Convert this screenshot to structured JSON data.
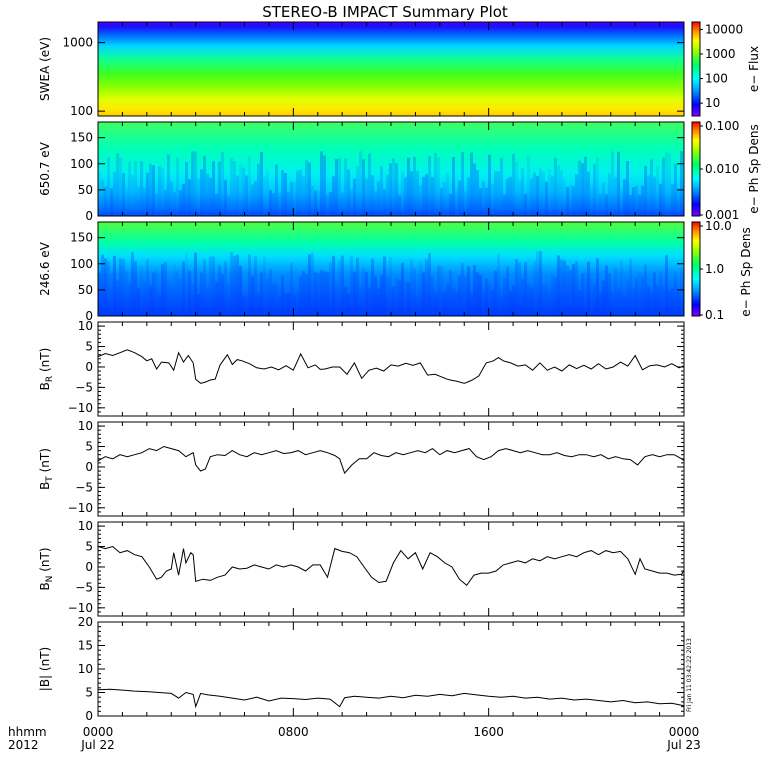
{
  "title": "STEREO-B IMPACT Summary Plot",
  "stamp": "Fri Jan 11 03:42:22 2013",
  "x_axis": {
    "row1_label": "hhmm",
    "row2_label": "2012",
    "ticks": [
      {
        "hours": 0,
        "time": "0000",
        "date": "Jul 22"
      },
      {
        "hours": 8,
        "time": "0800",
        "date": ""
      },
      {
        "hours": 16,
        "time": "1600",
        "date": ""
      },
      {
        "hours": 24,
        "time": "0000",
        "date": "Jul 23"
      }
    ],
    "range_hours": [
      0,
      24
    ]
  },
  "chart_data": [
    {
      "type": "heatmap",
      "panel": "swea",
      "ylabel": "SWEA (eV)",
      "y_scale": "log",
      "ylim": [
        85,
        2000
      ],
      "yticks": [
        {
          "value": 100,
          "label": "100"
        },
        {
          "value": 1000,
          "label": "1000"
        }
      ],
      "colorbar": {
        "label": "e− Flux",
        "scale": "log",
        "range": [
          3,
          20000
        ],
        "ticks": [
          {
            "value": 10,
            "label": "10"
          },
          {
            "value": 100,
            "label": "100"
          },
          {
            "value": 1000,
            "label": "1000"
          },
          {
            "value": 10000,
            "label": "10000"
          }
        ]
      },
      "description_gradient": [
        {
          "energy": 2000,
          "flux": 4
        },
        {
          "energy": 1400,
          "flux": 10
        },
        {
          "energy": 1000,
          "flux": 40
        },
        {
          "energy": 700,
          "flux": 300
        },
        {
          "energy": 450,
          "flux": 800
        },
        {
          "energy": 250,
          "flux": 1000
        },
        {
          "energy": 150,
          "flux": 3000
        },
        {
          "energy": 100,
          "flux": 8000
        },
        {
          "energy": 85,
          "flux": 12000
        }
      ]
    },
    {
      "type": "heatmap",
      "panel": "pad650",
      "ylabel": "650.7  eV",
      "ylim": [
        0,
        180
      ],
      "yticks": [
        {
          "value": 0,
          "label": "0"
        },
        {
          "value": 50,
          "label": "50"
        },
        {
          "value": 100,
          "label": "100"
        },
        {
          "value": 150,
          "label": "150"
        }
      ],
      "colorbar": {
        "label": "e− Ph Sp Dens",
        "scale": "log",
        "range": [
          0.001,
          0.1
        ],
        "ticks": [
          {
            "value": 0.001,
            "label": "0.001"
          },
          {
            "value": 0.01,
            "label": "0.010"
          },
          {
            "value": 0.1,
            "label": "0.100"
          }
        ]
      }
    },
    {
      "type": "heatmap",
      "panel": "pad246",
      "ylabel": "246.6  eV",
      "ylim": [
        0,
        180
      ],
      "yticks": [
        {
          "value": 0,
          "label": "0"
        },
        {
          "value": 50,
          "label": "50"
        },
        {
          "value": 100,
          "label": "100"
        },
        {
          "value": 150,
          "label": "150"
        }
      ],
      "colorbar": {
        "label": "e− Ph Sp Dens",
        "scale": "log",
        "range": [
          0.1,
          10
        ],
        "ticks": [
          {
            "value": 0.1,
            "label": "0.1"
          },
          {
            "value": 1,
            "label": "1.0"
          },
          {
            "value": 10,
            "label": "10.0"
          }
        ]
      }
    },
    {
      "type": "line",
      "panel": "br",
      "ylabel": "B",
      "ylabel_sub": "R",
      "ylabel_unit": " (nT)",
      "ylim": [
        -12,
        11
      ],
      "yticks": [
        {
          "value": -10,
          "label": "−10"
        },
        {
          "value": -5,
          "label": "−5"
        },
        {
          "value": 0,
          "label": "0"
        },
        {
          "value": 5,
          "label": "5"
        },
        {
          "value": 10,
          "label": "10"
        }
      ],
      "x": [
        0,
        0.3,
        0.6,
        0.9,
        1.2,
        1.5,
        1.8,
        2.0,
        2.2,
        2.4,
        2.6,
        2.9,
        3.1,
        3.3,
        3.5,
        3.7,
        3.9,
        4.0,
        4.2,
        4.4,
        4.6,
        4.8,
        5.0,
        5.3,
        5.5,
        5.7,
        5.9,
        6.2,
        6.5,
        6.8,
        7.1,
        7.4,
        7.7,
        8.0,
        8.3,
        8.6,
        8.9,
        9.1,
        9.3,
        9.6,
        9.9,
        10.2,
        10.5,
        10.8,
        11.1,
        11.4,
        11.7,
        12.0,
        12.3,
        12.6,
        12.9,
        13.2,
        13.5,
        13.8,
        14.1,
        14.3,
        14.5,
        14.7,
        15.0,
        15.3,
        15.6,
        15.9,
        16.2,
        16.4,
        16.6,
        16.9,
        17.2,
        17.5,
        17.8,
        18.1,
        18.4,
        18.7,
        19.0,
        19.3,
        19.6,
        19.9,
        20.2,
        20.5,
        20.8,
        21.1,
        21.4,
        21.7,
        22.0,
        22.3,
        22.6,
        22.9,
        23.2,
        23.5,
        23.8,
        24.0
      ],
      "y": [
        2.5,
        3.3,
        2.8,
        3.5,
        4.2,
        3.5,
        2.5,
        1.5,
        2.0,
        -0.5,
        1.2,
        1.0,
        -0.8,
        3.5,
        1.2,
        2.8,
        1.0,
        -3.0,
        -4.0,
        -3.7,
        -3.2,
        -3.0,
        0.5,
        3.0,
        0.6,
        1.8,
        1.5,
        0.8,
        -0.2,
        -0.5,
        0.0,
        -0.7,
        0.3,
        -0.8,
        3.2,
        -0.2,
        0.5,
        -0.6,
        -0.5,
        0.0,
        0.0,
        -1.8,
        1.0,
        -2.8,
        -0.8,
        -0.3,
        -1.0,
        0.5,
        0.2,
        0.9,
        0.4,
        1.0,
        -2.0,
        -1.8,
        -2.5,
        -3.0,
        -3.3,
        -3.5,
        -4.0,
        -3.3,
        -2.2,
        1.0,
        1.5,
        2.3,
        1.5,
        1.0,
        0.2,
        0.5,
        -0.8,
        1.0,
        -0.8,
        0.0,
        -1.0,
        0.5,
        -0.4,
        0.4,
        -0.5,
        0.8,
        -0.5,
        0.0,
        1.2,
        0.2,
        2.8,
        -0.7,
        0.3,
        0.5,
        0.0,
        0.8,
        -0.2,
        0.3
      ]
    },
    {
      "type": "line",
      "panel": "bt",
      "ylabel": "B",
      "ylabel_sub": "T",
      "ylabel_unit": " (nT)",
      "ylim": [
        -12,
        11
      ],
      "yticks": [
        {
          "value": -10,
          "label": "−10"
        },
        {
          "value": -5,
          "label": "−5"
        },
        {
          "value": 0,
          "label": "0"
        },
        {
          "value": 5,
          "label": "5"
        },
        {
          "value": 10,
          "label": "10"
        }
      ],
      "x": [
        0,
        0.3,
        0.6,
        0.9,
        1.2,
        1.5,
        1.8,
        2.1,
        2.4,
        2.7,
        3.0,
        3.3,
        3.6,
        3.9,
        4.0,
        4.2,
        4.4,
        4.6,
        4.9,
        5.2,
        5.5,
        5.8,
        6.1,
        6.4,
        6.7,
        7.0,
        7.3,
        7.6,
        7.9,
        8.2,
        8.5,
        8.8,
        9.1,
        9.4,
        9.7,
        9.9,
        10.1,
        10.4,
        10.7,
        11.0,
        11.3,
        11.6,
        11.9,
        12.2,
        12.5,
        12.8,
        13.1,
        13.4,
        13.7,
        14.0,
        14.3,
        14.6,
        14.9,
        15.2,
        15.5,
        15.8,
        16.1,
        16.4,
        16.7,
        17.0,
        17.3,
        17.6,
        17.9,
        18.2,
        18.5,
        18.8,
        19.1,
        19.4,
        19.7,
        20.0,
        20.3,
        20.6,
        20.9,
        21.2,
        21.5,
        21.8,
        22.1,
        22.4,
        22.7,
        23.0,
        23.3,
        23.6,
        23.9,
        24.0
      ],
      "y": [
        1.5,
        2.5,
        2.0,
        3.0,
        2.5,
        3.0,
        3.5,
        4.5,
        4.0,
        5.0,
        4.5,
        4.0,
        2.5,
        3.5,
        0.5,
        -1.0,
        -0.5,
        2.5,
        3.0,
        2.8,
        4.0,
        3.0,
        2.5,
        3.5,
        3.0,
        3.5,
        4.0,
        3.3,
        3.5,
        4.0,
        3.0,
        3.5,
        4.0,
        3.5,
        2.8,
        2.0,
        -1.5,
        0.5,
        2.0,
        2.0,
        3.5,
        2.8,
        2.5,
        3.5,
        3.0,
        3.5,
        4.0,
        3.5,
        4.5,
        3.0,
        4.0,
        3.5,
        4.0,
        4.5,
        2.5,
        1.8,
        2.5,
        4.0,
        4.5,
        4.0,
        3.5,
        4.0,
        3.5,
        3.0,
        3.0,
        3.5,
        2.8,
        2.5,
        3.0,
        3.0,
        2.5,
        3.0,
        2.0,
        2.5,
        2.0,
        1.8,
        0.5,
        2.5,
        3.0,
        2.5,
        3.0,
        3.0,
        2.0,
        1.5
      ]
    },
    {
      "type": "line",
      "panel": "bn",
      "ylabel": "B",
      "ylabel_sub": "N",
      "ylabel_unit": " (nT)",
      "ylim": [
        -12,
        11
      ],
      "yticks": [
        {
          "value": -10,
          "label": "−10"
        },
        {
          "value": -5,
          "label": "−5"
        },
        {
          "value": 0,
          "label": "0"
        },
        {
          "value": 5,
          "label": "5"
        },
        {
          "value": 10,
          "label": "10"
        }
      ],
      "x": [
        0,
        0.3,
        0.6,
        0.9,
        1.2,
        1.5,
        1.8,
        2.1,
        2.4,
        2.6,
        2.8,
        3.0,
        3.1,
        3.3,
        3.5,
        3.6,
        3.8,
        3.9,
        4.0,
        4.3,
        4.6,
        4.9,
        5.2,
        5.5,
        5.8,
        6.1,
        6.4,
        6.7,
        7.0,
        7.3,
        7.6,
        7.9,
        8.2,
        8.5,
        8.8,
        9.1,
        9.4,
        9.7,
        10.0,
        10.3,
        10.6,
        10.9,
        11.2,
        11.5,
        11.8,
        12.1,
        12.4,
        12.7,
        13.0,
        13.3,
        13.6,
        13.9,
        14.2,
        14.5,
        14.8,
        15.1,
        15.4,
        15.7,
        16.0,
        16.3,
        16.6,
        16.9,
        17.2,
        17.5,
        17.8,
        18.1,
        18.4,
        18.7,
        19.0,
        19.3,
        19.6,
        19.9,
        20.2,
        20.5,
        20.8,
        21.1,
        21.4,
        21.7,
        22.0,
        22.2,
        22.4,
        22.7,
        23.0,
        23.3,
        23.6,
        23.9,
        24.0
      ],
      "y": [
        5.0,
        4.5,
        5.0,
        3.5,
        4.0,
        3.0,
        2.5,
        0.0,
        -3.0,
        -2.5,
        -1.0,
        -0.5,
        3.5,
        -2.0,
        4.5,
        1.0,
        3.5,
        3.0,
        -3.5,
        -3.0,
        -3.3,
        -2.5,
        -2.0,
        0.0,
        -0.5,
        -0.3,
        0.5,
        0.0,
        -0.5,
        0.5,
        0.0,
        0.5,
        0.0,
        -1.0,
        0.5,
        0.5,
        -2.5,
        4.5,
        3.8,
        3.5,
        2.5,
        0.0,
        -2.5,
        -3.8,
        -3.5,
        1.0,
        4.0,
        2.0,
        3.5,
        -0.5,
        3.5,
        2.5,
        1.0,
        0.0,
        -3.0,
        -4.5,
        -2.0,
        -1.5,
        -1.5,
        -1.0,
        0.5,
        1.0,
        1.5,
        1.0,
        2.0,
        1.5,
        2.5,
        2.0,
        2.5,
        3.0,
        2.5,
        3.5,
        4.0,
        3.0,
        4.0,
        3.5,
        3.8,
        2.0,
        -1.8,
        2.0,
        -0.5,
        -1.0,
        -1.5,
        -1.5,
        -2.0,
        -1.8,
        -0.8
      ]
    },
    {
      "type": "line",
      "panel": "bmag",
      "ylabel": "|B| (nT)",
      "ylim": [
        0,
        20
      ],
      "yticks": [
        {
          "value": 0,
          "label": "0"
        },
        {
          "value": 5,
          "label": "5"
        },
        {
          "value": 10,
          "label": "10"
        },
        {
          "value": 15,
          "label": "15"
        },
        {
          "value": 20,
          "label": "20"
        }
      ],
      "x": [
        0,
        0.5,
        1.0,
        1.5,
        2.0,
        2.5,
        3.0,
        3.3,
        3.6,
        3.9,
        4.0,
        4.2,
        4.5,
        5.0,
        5.5,
        6.0,
        6.5,
        7.0,
        7.5,
        8.0,
        8.5,
        9.0,
        9.5,
        9.9,
        10.1,
        10.5,
        11.0,
        11.5,
        12.0,
        12.5,
        13.0,
        13.5,
        14.0,
        14.5,
        15.0,
        15.5,
        16.0,
        16.5,
        17.0,
        17.5,
        18.0,
        18.5,
        19.0,
        19.5,
        20.0,
        20.5,
        21.0,
        21.5,
        22.0,
        22.5,
        23.0,
        23.5,
        24.0
      ],
      "y": [
        5.6,
        5.7,
        5.5,
        5.3,
        5.2,
        5.0,
        4.8,
        3.8,
        5.0,
        4.6,
        2.0,
        4.8,
        4.5,
        4.2,
        3.8,
        3.4,
        4.0,
        3.2,
        3.8,
        3.7,
        3.5,
        3.8,
        3.6,
        2.0,
        3.9,
        4.2,
        4.0,
        3.8,
        4.2,
        3.9,
        4.4,
        4.2,
        4.6,
        4.3,
        4.8,
        4.5,
        4.2,
        4.0,
        4.2,
        3.8,
        4.0,
        3.6,
        3.8,
        3.4,
        3.6,
        3.3,
        3.0,
        3.3,
        2.8,
        3.0,
        2.6,
        2.7,
        2.2
      ]
    }
  ]
}
